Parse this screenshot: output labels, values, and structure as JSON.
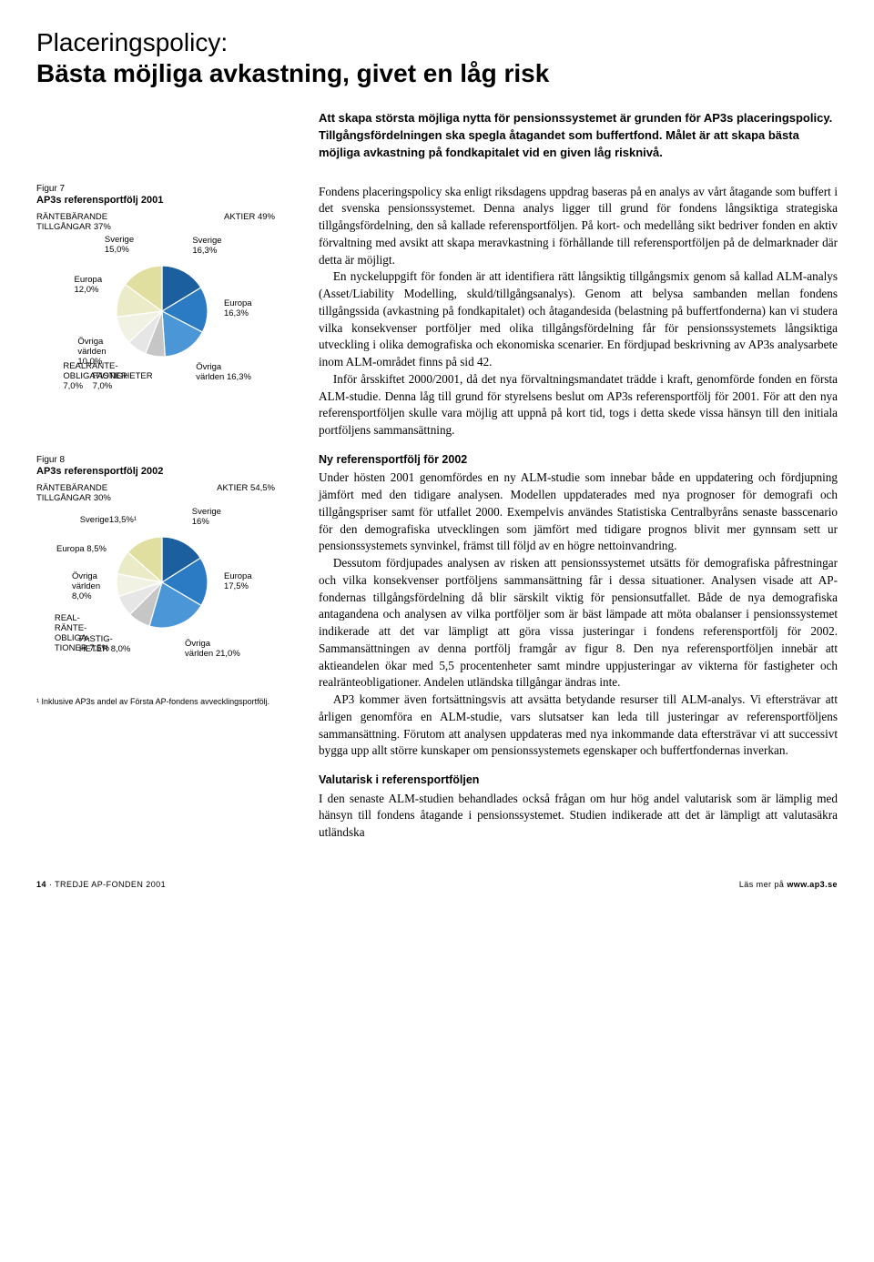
{
  "title": {
    "line1": "Placeringspolicy:",
    "line2": "Bästa möjliga avkastning, givet en låg risk"
  },
  "intro": "Att skapa största möjliga nytta för pensionssystemet är grunden för AP3s placeringspolicy. Tillgångsfördelningen ska spegla åtagandet som buffertfond. Målet är att skapa bästa möjliga avkastning på fondkapitalet vid en given låg risknivå.",
  "fig7": {
    "caption": "Figur 7",
    "title": "AP3s referensportfölj 2001",
    "group_left": "RÄNTEBÄRANDE TILLGÅNGAR 37%",
    "group_right": "AKTIER 49%",
    "slices": [
      {
        "label": "Sverige\n16,3%",
        "value": 16.3,
        "color": "#1b5f9e"
      },
      {
        "label": "Europa\n16,3%",
        "value": 16.3,
        "color": "#2a7bc4"
      },
      {
        "label": "Övriga\nvärlden 16,3%",
        "value": 16.3,
        "color": "#4a96d6"
      },
      {
        "label": "FASTIGHETER\n7,0%",
        "value": 7.0,
        "color": "#c6c6c6"
      },
      {
        "label": "REALRÄNTE-\nOBLIGATIONER\n7,0%",
        "value": 7.0,
        "color": "#e6e6e6"
      },
      {
        "label": "Övriga\nvärlden\n10,0%",
        "value": 10.0,
        "color": "#f2f2e4"
      },
      {
        "label": "Europa\n12,0%",
        "value": 12.0,
        "color": "#ecebc8"
      },
      {
        "label": "Sverige\n15,0%",
        "value": 15.0,
        "color": "#e1dfa0"
      }
    ]
  },
  "fig8": {
    "caption": "Figur 8",
    "title": "AP3s referensportfölj 2002",
    "group_left": "RÄNTEBÄRANDE TILLGÅNGAR 30%",
    "group_right": "AKTIER 54,5%",
    "slices": [
      {
        "label": "Sverige\n16%",
        "value": 16.0,
        "color": "#1b5f9e"
      },
      {
        "label": "Europa\n17,5%",
        "value": 17.5,
        "color": "#2a7bc4"
      },
      {
        "label": "Övriga\nvärlden 21,0%",
        "value": 21.0,
        "color": "#4a96d6"
      },
      {
        "label": "FASTIG-\nHETER 8,0%",
        "value": 8.0,
        "color": "#c6c6c6"
      },
      {
        "label": "REAL-\nRÄNTE-\nOBLIGA-\nTIONER 7,5%",
        "value": 7.5,
        "color": "#e6e6e6"
      },
      {
        "label": "Övriga\nvärlden\n8,0%",
        "value": 8.0,
        "color": "#f2f2e4"
      },
      {
        "label": "Europa 8,5%",
        "value": 8.5,
        "color": "#ecebc8"
      },
      {
        "label": "Sverige13,5%¹",
        "value": 13.5,
        "color": "#e1dfa0"
      }
    ],
    "footnote": "¹ Inklusive AP3s andel av Första AP-fondens avvecklingsportfölj."
  },
  "body": {
    "p1": "Fondens placeringspolicy ska enligt riksdagens uppdrag baseras på en analys av vårt åtagande som buffert i det svenska pensionssystemet. Denna analys ligger till grund för fondens långsiktiga strategiska tillgångsfördelning, den så kallade referensportföljen. På kort- och medellång sikt bedriver fonden en aktiv förvaltning med avsikt att skapa meravkastning i förhållande till referensportföljen på de delmarknader där detta är möjligt.",
    "p2": "En nyckeluppgift för fonden är att identifiera rätt långsiktig tillgångsmix genom så kallad ALM-analys (Asset/Liability Modelling, skuld/tillgångsanalys). Genom att belysa sambanden mellan fondens tillgångssida (avkastning på fondkapitalet) och åtagandesida (belastning på buffertfonderna) kan vi studera vilka konsekvenser portföljer med olika tillgångsfördelning får för pensionssystemets långsiktiga utveckling i olika demografiska och ekonomiska scenarier. En fördjupad beskrivning av AP3s analysarbete inom ALM-området finns på sid 42.",
    "p3": "Inför årsskiftet 2000/2001, då det nya förvaltningsmandatet trädde i kraft, genomförde fonden en första ALM-studie. Denna låg till grund för styrelsens beslut om AP3s referensportfölj för 2001. För att den nya referensportföljen skulle vara möjlig att uppnå på kort tid, togs i detta skede vissa hänsyn till den initiala portföljens sammansättning.",
    "h1": "Ny referensportfölj för 2002",
    "p4": "Under hösten 2001 genomfördes en ny ALM-studie som innebar både en uppdatering och fördjupning jämfört med den tidigare analysen. Modellen uppdaterades med nya prognoser för demografi och tillgångspriser samt för utfallet 2000. Exempelvis användes Statistiska Centralbyråns senaste basscenario för den demografiska utvecklingen som jämfört med tidigare prognos blivit mer gynnsam sett ur pensionssystemets synvinkel, främst till följd av en högre nettoinvandring.",
    "p5": "Dessutom fördjupades analysen av risken att pensionssystemet utsätts för demografiska påfrestningar och vilka konsekvenser portföljens sammansättning får i dessa situationer. Analysen visade att AP-fondernas tillgångsfördelning då blir särskilt viktig för pensionsutfallet. Både de nya demografiska antagandena och analysen av vilka portföljer som är bäst lämpade att möta obalanser i pensionssystemet indikerade att det var lämpligt att göra vissa justeringar i fondens referensportfölj för 2002. Sammansättningen av denna portfölj framgår av figur 8. Den nya referensportföljen innebär att aktieandelen ökar med 5,5 procentenheter samt mindre uppjusteringar av vikterna för fastigheter och realränteobligationer. Andelen utländska tillgångar ändras inte.",
    "p6": "AP3 kommer även fortsättningsvis att avsätta betydande resurser till ALM-analys. Vi eftersträvar att årligen genomföra en ALM-studie, vars slutsatser kan leda till justeringar av referensportföljens sammansättning. Förutom att analysen uppdateras med nya inkommande data eftersträvar vi att successivt bygga upp allt större kunskaper om pensionssystemets egenskaper och buffertfondernas inverkan.",
    "h2": "Valutarisk i referensportföljen",
    "p7": "I den senaste ALM-studien behandlades också frågan om hur hög andel valutarisk som är lämplig med hänsyn till fondens åtagande i pensionssystemet. Studien indikerade att det är lämpligt att valutasäkra utländska"
  },
  "footer": {
    "left_page": "14",
    "left_text": " · TREDJE AP-FONDEN 2001",
    "right_prefix": "Läs mer på ",
    "right_url": "www.ap3.se"
  },
  "pie_style": {
    "radius": 50,
    "stroke": "#ffffff",
    "stroke_width": 1.2,
    "start_angle_deg": -90
  }
}
